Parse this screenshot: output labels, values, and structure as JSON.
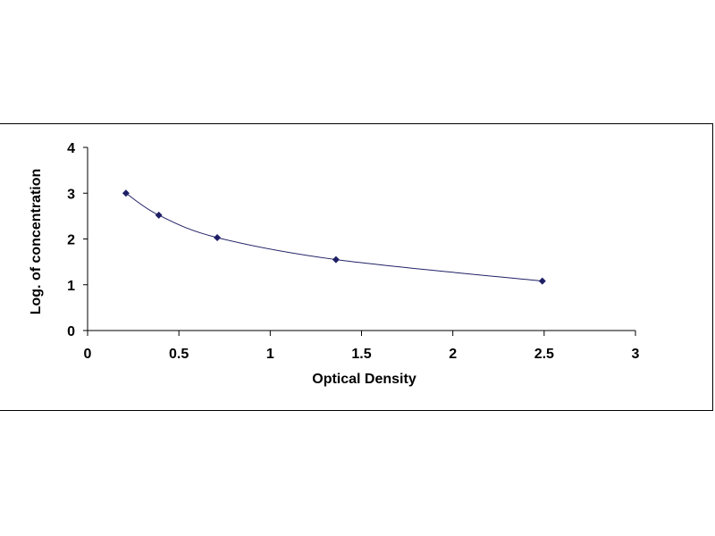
{
  "chart_data": {
    "type": "scatter",
    "title": "",
    "xlabel": "Optical Density",
    "ylabel": "Log. of concentration",
    "xlim": [
      0,
      3
    ],
    "ylim": [
      0,
      4
    ],
    "x_ticks": [
      "0",
      "0.5",
      "1",
      "1.5",
      "2",
      "2.5",
      "3"
    ],
    "y_ticks": [
      "0",
      "1",
      "2",
      "3",
      "4"
    ],
    "grid": false,
    "legend": "none",
    "series": [
      {
        "x": [
          0.21,
          0.39,
          0.71,
          1.36,
          2.49
        ],
        "y": [
          3.0,
          2.52,
          2.03,
          1.55,
          1.08
        ],
        "marker": "diamond",
        "color": "#1f1f66",
        "trendline": "smooth"
      }
    ]
  }
}
